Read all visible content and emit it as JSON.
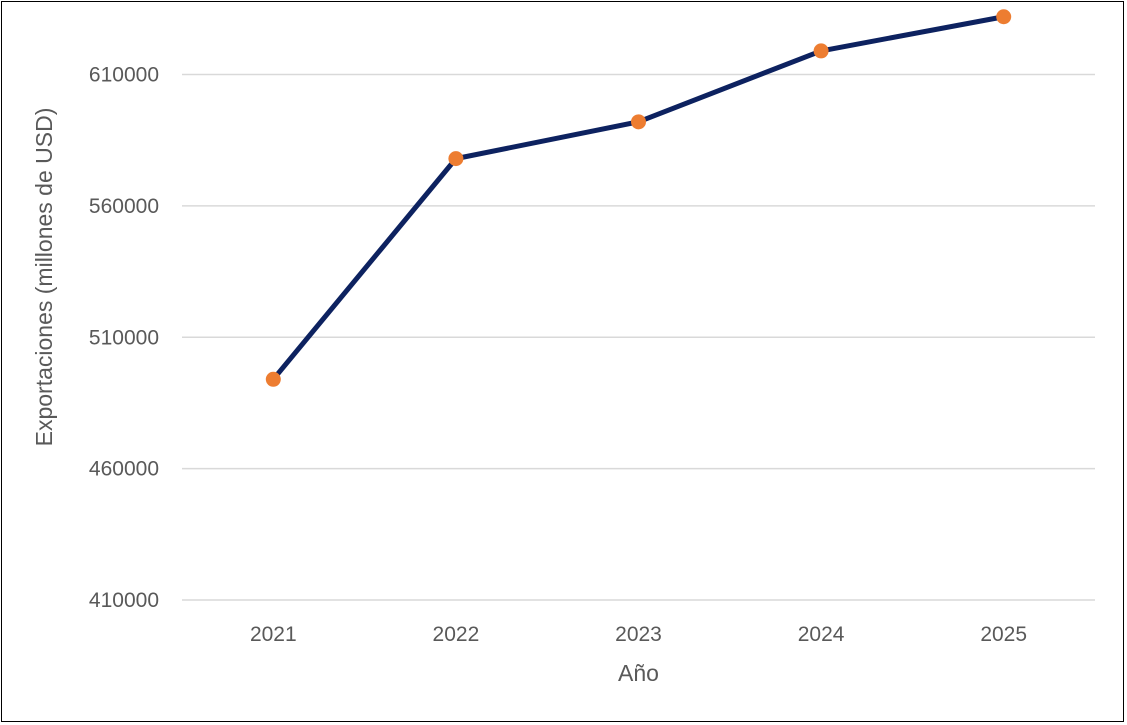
{
  "chart_data": {
    "type": "line",
    "title": "",
    "xlabel": "Año",
    "ylabel": "Exportaciones (millones de USD)",
    "categories": [
      "2021",
      "2022",
      "2023",
      "2024",
      "2025"
    ],
    "series": [
      {
        "values": [
          494000,
          578000,
          592000,
          619000,
          632000
        ]
      }
    ],
    "ylim": [
      410000,
      630000
    ],
    "yticks": [
      410000,
      460000,
      510000,
      560000,
      610000
    ],
    "ytick_labels": [
      "410000",
      "460000",
      "510000",
      "560000",
      "610000"
    ],
    "grid": true,
    "legend": "none",
    "colors": {
      "line": "#0d2260",
      "marker": "#ed7d31",
      "grid": "#d9d9d9",
      "text": "#595959",
      "border": "#000000"
    }
  }
}
